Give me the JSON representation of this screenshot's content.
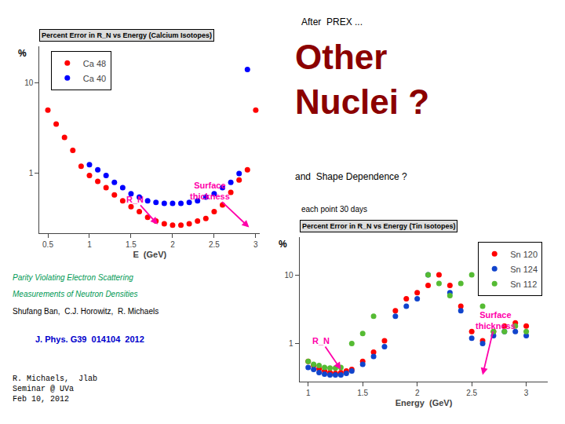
{
  "chart_data": [
    {
      "type": "scatter",
      "title": "Percent Error in R_N vs Energy (Calcium Isotopes)",
      "x_label": "E  (GeV)",
      "y_label": "%",
      "log": "y",
      "xlim": [
        0.4,
        3.05
      ],
      "ylim": [
        0.22,
        25
      ],
      "xticks": [
        0.5,
        1,
        1.5,
        2,
        2.5,
        3
      ],
      "yticks": [
        1,
        10
      ],
      "grid": false,
      "legend": "upper left",
      "series": [
        {
          "name": "Ca 48",
          "color": "red",
          "x": [
            0.5,
            0.6,
            0.7,
            0.8,
            0.9,
            1.0,
            1.1,
            1.2,
            1.3,
            1.4,
            1.5,
            1.6,
            1.7,
            1.8,
            1.9,
            2.0,
            2.1,
            2.2,
            2.3,
            2.4,
            2.5,
            2.6,
            2.7,
            2.8,
            2.9,
            3.0
          ],
          "values": [
            5.0,
            3.5,
            2.5,
            1.8,
            1.2,
            0.95,
            0.82,
            0.7,
            0.58,
            0.5,
            0.43,
            0.38,
            0.33,
            0.3,
            0.28,
            0.27,
            0.27,
            0.28,
            0.3,
            0.32,
            0.38,
            0.45,
            0.62,
            0.85,
            1.1,
            5.0
          ]
        },
        {
          "name": "Ca 40",
          "color": "blue",
          "x": [
            1.0,
            1.1,
            1.2,
            1.3,
            1.4,
            1.5,
            1.6,
            1.7,
            1.8,
            1.9,
            2.0,
            2.1,
            2.2,
            2.3,
            2.4,
            2.5,
            2.6,
            2.7,
            2.8,
            2.9
          ],
          "values": [
            1.25,
            1.1,
            0.95,
            0.8,
            0.7,
            0.6,
            0.55,
            0.5,
            0.48,
            0.47,
            0.47,
            0.47,
            0.48,
            0.5,
            0.55,
            0.6,
            0.7,
            0.8,
            1.0,
            14.0
          ]
        }
      ],
      "annotations": [
        {
          "text": "R_N",
          "color": "#FF00AA",
          "x": 1.82,
          "y": 0.275,
          "text_x": 1.55,
          "text_y": 0.52
        },
        {
          "text": "Surface\nthickness",
          "color": "#FF00AA",
          "x": 2.92,
          "y": 0.255,
          "text_x": 2.45,
          "text_y": 0.65
        },
        {
          "text": "After  PREX ...",
          "color": "black"
        },
        {
          "text": "Other\nNuclei ?",
          "color": "#8B0000"
        },
        {
          "text": "and  Shape Dependence ?",
          "color": "black"
        },
        {
          "text": "Parity Violating Electron Scattering",
          "color": "#009955"
        },
        {
          "text": "Measurements of Neutron Densities",
          "color": "#009955"
        },
        {
          "text": "Shufang Ban,  C.J. Horowitz,  R. Michaels",
          "color": "black"
        },
        {
          "text": "J. Phys. G39  014104  2012",
          "color": "#0000cc"
        },
        {
          "text": "R. Michaels,  Jlab\nSeminar @ UVa\nFeb 10, 2012",
          "color": "black"
        }
      ]
    },
    {
      "type": "scatter",
      "title": "Percent Error in R_N vs Energy (Tin Isotopes)",
      "x_label": "Energy  (GeV)",
      "y_label": "%",
      "log": "y",
      "xlim": [
        0.92,
        3.2
      ],
      "ylim": [
        0.28,
        35
      ],
      "xticks": [
        1,
        1.5,
        2,
        2.5,
        3
      ],
      "yticks": [
        1,
        10
      ],
      "grid": false,
      "legend": "upper right",
      "series": [
        {
          "name": "Sn 120",
          "color": "red",
          "x": [
            1.0,
            1.05,
            1.1,
            1.15,
            1.2,
            1.25,
            1.3,
            1.35,
            1.4,
            1.5,
            1.6,
            1.7,
            1.8,
            1.9,
            2.0,
            2.1,
            2.2,
            2.3,
            2.4,
            2.5,
            2.6,
            2.7,
            2.8,
            2.9,
            3.0
          ],
          "values": [
            0.55,
            0.48,
            0.43,
            0.4,
            0.38,
            0.37,
            0.38,
            0.4,
            0.42,
            0.55,
            0.75,
            1.1,
            3.0,
            4.5,
            5.5,
            7.0,
            10.0,
            7.0,
            3.5,
            1.5,
            1.1,
            1.5,
            1.8,
            2.0,
            1.8
          ]
        },
        {
          "name": "Sn 124",
          "color": "#1144cc",
          "x": [
            1.0,
            1.05,
            1.1,
            1.15,
            1.2,
            1.25,
            1.3,
            1.35,
            1.4,
            1.5,
            1.6,
            1.7,
            1.8,
            1.9,
            2.0,
            2.1,
            2.3,
            2.4,
            2.5,
            2.6,
            2.7,
            2.8,
            2.9,
            3.0
          ],
          "values": [
            0.45,
            0.42,
            0.38,
            0.36,
            0.35,
            0.35,
            0.35,
            0.37,
            0.4,
            0.5,
            0.65,
            0.9,
            2.5,
            3.5,
            4.5,
            10.0,
            5.5,
            3.0,
            1.2,
            1.0,
            1.3,
            1.5,
            1.5,
            1.3
          ]
        },
        {
          "name": "Sn 112",
          "color": "#55bb33",
          "x": [
            1.0,
            1.05,
            1.1,
            1.15,
            1.2,
            1.25,
            1.3,
            1.4,
            1.5,
            1.6,
            2.1,
            2.2,
            2.3,
            2.4,
            2.5,
            2.6,
            2.7,
            2.8,
            2.9,
            3.0
          ],
          "values": [
            0.55,
            0.5,
            0.48,
            0.45,
            0.44,
            0.44,
            0.45,
            1.0,
            1.4,
            2.5,
            10.0,
            7.5,
            5.0,
            7.5,
            10.0,
            3.5,
            1.5,
            1.5,
            1.8,
            1.5
          ]
        }
      ],
      "annotations": [
        {
          "text": "R_N",
          "color": "#FF00AA",
          "x": 1.3,
          "y": 0.42,
          "text_x": 1.12,
          "text_y": 1.1
        },
        {
          "text": "Surface\nthickness",
          "color": "#FF00AA",
          "x": 2.6,
          "y": 0.35,
          "text_x": 2.72,
          "text_y": 2.2
        },
        {
          "text": "each point 30 days",
          "color": "black"
        }
      ]
    }
  ]
}
